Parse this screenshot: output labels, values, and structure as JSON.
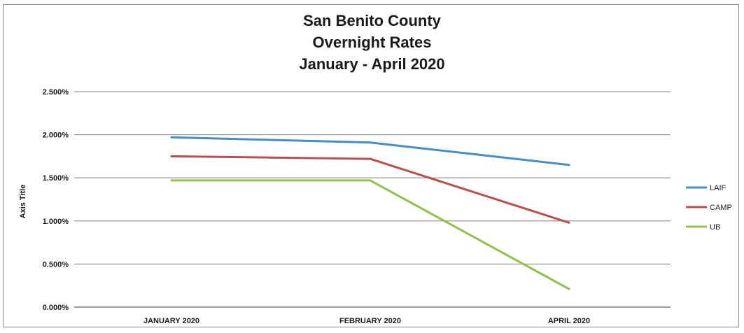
{
  "chart_data": {
    "type": "line",
    "title": [
      "San Benito County",
      "Overnight Rates",
      "January - April 2020"
    ],
    "ylabel": "Axis Title",
    "xlabel": "",
    "categories": [
      "JANUARY 2020",
      "FEBRUARY 2020",
      "APRIL 2020"
    ],
    "ylim": [
      0,
      2.5
    ],
    "yticks": [
      "0.000%",
      "0.500%",
      "1.000%",
      "1.500%",
      "2.000%",
      "2.500%"
    ],
    "grid": true,
    "legend_position": "right",
    "series": [
      {
        "name": "LAIF",
        "color": "#4a8cc4",
        "values": [
          1.97,
          1.91,
          1.65
        ]
      },
      {
        "name": "CAMP",
        "color": "#b9504f",
        "values": [
          1.75,
          1.72,
          0.98
        ]
      },
      {
        "name": "UB",
        "color": "#93bf4f",
        "values": [
          1.47,
          1.47,
          0.21
        ]
      }
    ]
  }
}
